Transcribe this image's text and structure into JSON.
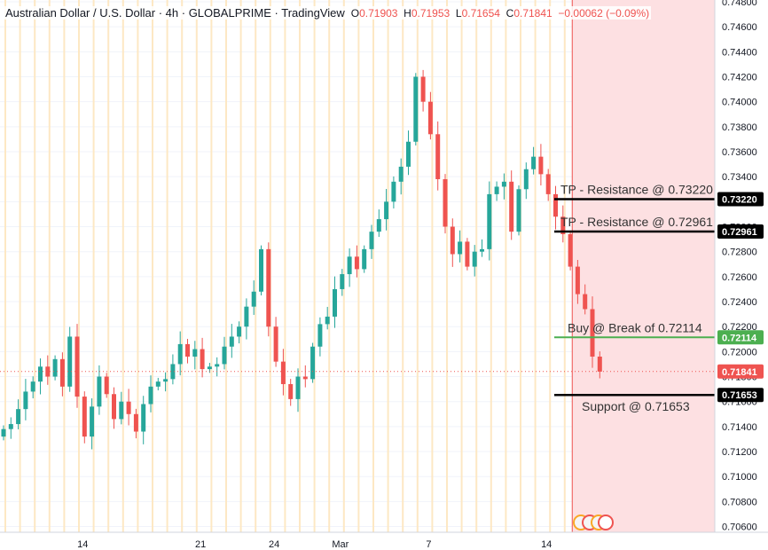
{
  "header": {
    "symbol": "Australian Dollar / U.S. Dollar",
    "timeframe": "4h",
    "broker": "GLOBALPRIME",
    "platform": "TradingView",
    "ohlc": {
      "o_label": "O",
      "o": "0.71903",
      "h_label": "H",
      "h": "0.71953",
      "l_label": "L",
      "l": "0.71654",
      "c_label": "C",
      "c": "0.71841",
      "change": "−0.00062 (−0.09%)"
    }
  },
  "colors": {
    "up": "#26a69a",
    "down": "#ef5350",
    "forecast_zone": "#fde0e2",
    "session_lines": "#fde8c4",
    "grid": "#f0f3fa",
    "level_line": "#000000",
    "buy_line": "#4caf50",
    "current_price_tag": "#ef5350"
  },
  "chart_data": {
    "type": "candlestick",
    "ylim": [
      0.7054,
      0.748
    ],
    "y_ticks": [
      "0.74800",
      "0.74600",
      "0.74400",
      "0.74200",
      "0.74000",
      "0.73800",
      "0.73600",
      "0.73400",
      "0.73200",
      "0.73000",
      "0.72800",
      "0.72600",
      "0.72400",
      "0.72200",
      "0.72000",
      "0.71800",
      "0.71600",
      "0.71400",
      "0.71200",
      "0.71000",
      "0.70800",
      "0.70600"
    ],
    "x_labels": [
      "14",
      "21",
      "24",
      "Mar",
      "7",
      "14"
    ],
    "x_label_positions": [
      11,
      27,
      37,
      46,
      58,
      74
    ],
    "forecast_zone_start_index": 77.5,
    "current_price": 0.71841,
    "current_price_label": "0.71841",
    "closes": [
      0.7138,
      0.7142,
      0.7154,
      0.7168,
      0.7176,
      0.7188,
      0.718,
      0.7194,
      0.7172,
      0.7212,
      0.7164,
      0.7132,
      0.7156,
      0.718,
      0.7166,
      0.7146,
      0.716,
      0.715,
      0.7136,
      0.7158,
      0.7172,
      0.7176,
      0.7178,
      0.719,
      0.7206,
      0.7196,
      0.7202,
      0.7186,
      0.7188,
      0.719,
      0.7204,
      0.7212,
      0.722,
      0.7236,
      0.7248,
      0.7282,
      0.722,
      0.7192,
      0.7174,
      0.7162,
      0.718,
      0.7178,
      0.7204,
      0.7222,
      0.7228,
      0.725,
      0.7262,
      0.7276,
      0.7266,
      0.7282,
      0.7296,
      0.7306,
      0.732,
      0.7336,
      0.7348,
      0.7368,
      0.742,
      0.74,
      0.7374,
      0.7338,
      0.73,
      0.7278,
      0.7288,
      0.7268,
      0.728,
      0.7282,
      0.7326,
      0.7332,
      0.7336,
      0.7296,
      0.733,
      0.7346,
      0.7356,
      0.7342,
      0.7326,
      0.7308,
      0.7294,
      0.7268,
      0.7246,
      0.7234,
      0.7196,
      0.7184
    ],
    "levels": [
      {
        "name": "tp2",
        "price": 0.7322,
        "tag": "0.73220",
        "label": "TP - Resistance @ 0.73220"
      },
      {
        "name": "tp1",
        "price": 0.72961,
        "tag": "0.72961",
        "label": "TP - Resistance @ 0.72961"
      },
      {
        "name": "buy",
        "price": 0.72114,
        "tag": "0.72114",
        "label": "Buy @ Break of 0.72114"
      },
      {
        "name": "support",
        "price": 0.71653,
        "tag": "0.71653",
        "label": "Support @ 0.71653"
      }
    ]
  }
}
